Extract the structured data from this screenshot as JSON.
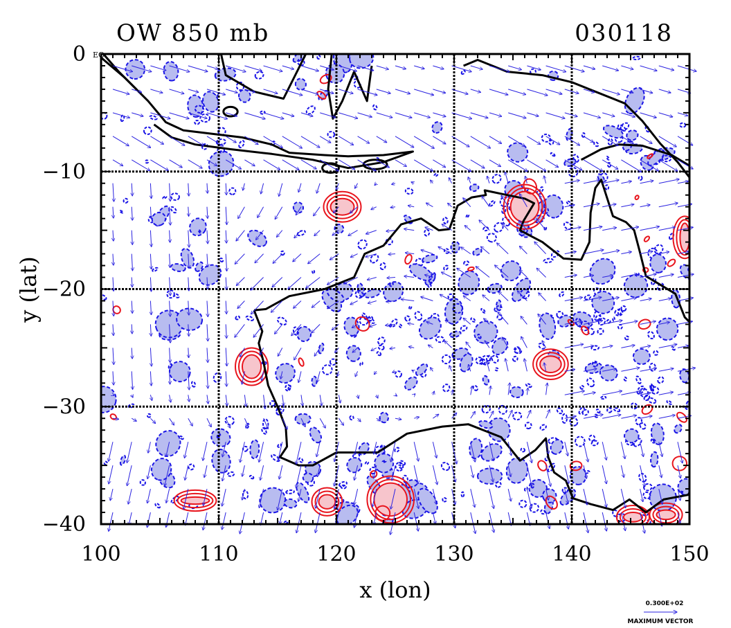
{
  "chart_data": {
    "type": "contour",
    "title_left": "OW 850 mb",
    "title_right": "030118",
    "xlabel": "x (lon)",
    "ylabel": "y (lat)",
    "xlim": [
      100,
      150
    ],
    "ylim": [
      -40,
      0
    ],
    "x_ticks": [
      100,
      110,
      120,
      130,
      140,
      150
    ],
    "y_ticks": [
      0,
      -10,
      -20,
      -30,
      -40
    ],
    "x_tick_labels": [
      "100",
      "110",
      "120",
      "130",
      "140",
      "150"
    ],
    "y_tick_labels": [
      "0",
      "−10",
      "−20",
      "−30",
      "−40"
    ],
    "y0_suffix": "EQ",
    "grid": true,
    "grid_lines": {
      "x": [
        110,
        120,
        130,
        140
      ],
      "y": [
        -10,
        -20,
        -30
      ]
    },
    "vector_key": {
      "value_label": "0.300E+02",
      "caption": "MAXIMUM VECTOR"
    },
    "colors": {
      "positive_contour": "#e8141c",
      "positive_fill": "#f7c5cc",
      "negative_contour": "#1a14e6",
      "negative_fill": "#b8bcf0",
      "coastline": "#000000",
      "vectors": "#2a22e0"
    },
    "positive_regions": [
      {
        "lon": 124.6,
        "lat": -37.9,
        "rx": 1.4,
        "ry": 1.4,
        "filled": true
      },
      {
        "lon": 136.0,
        "lat": -13.0,
        "rx": 1.2,
        "ry": 1.3,
        "filled": true
      },
      {
        "lon": 112.8,
        "lat": -26.6,
        "rx": 0.8,
        "ry": 1.0,
        "filled": true
      },
      {
        "lon": 138.2,
        "lat": -26.4,
        "rx": 0.9,
        "ry": 0.7,
        "filled": true
      },
      {
        "lon": 149.6,
        "lat": -15.6,
        "rx": 0.4,
        "ry": 1.2,
        "filled": true
      },
      {
        "lon": 119.2,
        "lat": -38.1,
        "rx": 0.7,
        "ry": 0.6,
        "filled": true
      },
      {
        "lon": 145.2,
        "lat": -39.4,
        "rx": 0.8,
        "ry": 0.4,
        "filled": true
      },
      {
        "lon": 148.0,
        "lat": -39.2,
        "rx": 0.8,
        "ry": 0.4,
        "filled": true
      },
      {
        "lon": 108.0,
        "lat": -38.0,
        "rx": 1.2,
        "ry": 0.3,
        "filled": true
      },
      {
        "lon": 120.5,
        "lat": -13.0,
        "rx": 1.0,
        "ry": 0.7,
        "filled": true
      }
    ],
    "coastlines": [
      [
        [
          100.0,
          -0.3
        ],
        [
          102.0,
          -2.0
        ],
        [
          104.0,
          -4.0
        ],
        [
          105.5,
          -5.8
        ],
        [
          107.0,
          -6.5
        ],
        [
          109.5,
          -6.8
        ],
        [
          112.0,
          -7.1
        ],
        [
          114.5,
          -7.7
        ],
        [
          116.0,
          -8.4
        ],
        [
          119.0,
          -8.6
        ],
        [
          121.0,
          -8.7
        ],
        [
          124.0,
          -8.6
        ],
        [
          126.5,
          -8.3
        ],
        [
          124.0,
          -9.2
        ],
        [
          121.0,
          -9.7
        ],
        [
          118.0,
          -9.0
        ],
        [
          114.5,
          -8.5
        ],
        [
          111.0,
          -8.1
        ],
        [
          108.0,
          -7.7
        ],
        [
          106.0,
          -7.1
        ],
        [
          104.5,
          -6.0
        ]
      ],
      [
        [
          100.2,
          0.0
        ],
        [
          101.5,
          -1.5
        ],
        [
          103.0,
          -3.0
        ]
      ],
      [
        [
          110.2,
          0.0
        ],
        [
          110.6,
          -1.8
        ],
        [
          113.0,
          -3.2
        ],
        [
          115.5,
          -3.8
        ],
        [
          116.4,
          -2.0
        ],
        [
          117.4,
          0.0
        ]
      ],
      [
        [
          119.6,
          0.0
        ],
        [
          119.3,
          -3.0
        ],
        [
          119.7,
          -5.5
        ],
        [
          120.5,
          -4.0
        ],
        [
          121.5,
          -1.5
        ],
        [
          122.6,
          -4.0
        ],
        [
          123.0,
          -1.0
        ]
      ],
      [
        [
          130.8,
          -1.0
        ],
        [
          132.0,
          -0.5
        ],
        [
          134.5,
          -1.5
        ],
        [
          137.5,
          -1.8
        ],
        [
          140.0,
          -2.4
        ],
        [
          142.0,
          -3.2
        ],
        [
          144.5,
          -4.2
        ],
        [
          146.0,
          -5.7
        ],
        [
          147.5,
          -7.6
        ],
        [
          149.0,
          -9.2
        ],
        [
          150.0,
          -10.5
        ]
      ],
      [
        [
          140.8,
          -9.0
        ],
        [
          142.5,
          -8.1
        ],
        [
          144.0,
          -7.7
        ],
        [
          146.0,
          -7.8
        ],
        [
          148.5,
          -8.6
        ],
        [
          150.0,
          -9.5
        ]
      ],
      [
        [
          113.0,
          -21.8
        ],
        [
          114.0,
          -21.7
        ],
        [
          116.0,
          -20.6
        ],
        [
          119.0,
          -20.0
        ],
        [
          121.5,
          -19.0
        ],
        [
          122.4,
          -17.0
        ],
        [
          124.0,
          -16.3
        ],
        [
          125.5,
          -14.5
        ],
        [
          127.2,
          -14.0
        ],
        [
          128.7,
          -15.0
        ],
        [
          129.6,
          -14.9
        ],
        [
          130.3,
          -12.9
        ],
        [
          131.5,
          -12.2
        ],
        [
          132.7,
          -12.0
        ],
        [
          132.6,
          -11.6
        ],
        [
          134.5,
          -12.0
        ],
        [
          136.0,
          -12.3
        ],
        [
          136.8,
          -12.7
        ],
        [
          135.9,
          -14.2
        ],
        [
          135.6,
          -15.0
        ],
        [
          137.5,
          -16.0
        ],
        [
          139.3,
          -17.4
        ],
        [
          140.8,
          -17.5
        ],
        [
          141.5,
          -16.0
        ],
        [
          141.6,
          -13.5
        ],
        [
          142.0,
          -11.4
        ],
        [
          142.5,
          -10.7
        ],
        [
          143.5,
          -13.8
        ],
        [
          144.6,
          -14.3
        ],
        [
          145.3,
          -15.0
        ],
        [
          145.8,
          -16.9
        ],
        [
          146.3,
          -18.9
        ],
        [
          148.8,
          -20.4
        ],
        [
          149.6,
          -22.4
        ],
        [
          150.0,
          -22.8
        ]
      ],
      [
        [
          113.0,
          -21.8
        ],
        [
          113.7,
          -23.6
        ],
        [
          113.4,
          -24.6
        ],
        [
          113.8,
          -26.2
        ],
        [
          114.2,
          -28.2
        ],
        [
          115.0,
          -30.0
        ],
        [
          115.7,
          -31.8
        ],
        [
          115.8,
          -33.4
        ],
        [
          115.2,
          -34.3
        ],
        [
          116.8,
          -35.0
        ],
        [
          118.0,
          -35.0
        ],
        [
          120.0,
          -33.9
        ],
        [
          123.5,
          -33.9
        ],
        [
          126.0,
          -32.3
        ],
        [
          129.0,
          -31.7
        ],
        [
          131.2,
          -31.5
        ],
        [
          134.0,
          -32.6
        ],
        [
          135.6,
          -34.6
        ],
        [
          136.9,
          -33.7
        ],
        [
          137.8,
          -32.7
        ],
        [
          138.0,
          -34.3
        ],
        [
          138.5,
          -35.6
        ],
        [
          139.5,
          -36.3
        ],
        [
          140.1,
          -37.8
        ],
        [
          141.6,
          -38.3
        ],
        [
          143.5,
          -38.8
        ],
        [
          144.9,
          -37.9
        ],
        [
          146.3,
          -39.0
        ],
        [
          147.8,
          -37.9
        ],
        [
          149.9,
          -37.5
        ],
        [
          150.0,
          -37.3
        ]
      ]
    ],
    "lakes": [
      {
        "lon": 111.0,
        "lat": -4.9,
        "rx": 0.6,
        "ry": 0.4
      },
      {
        "lon": 119.5,
        "lat": -9.7,
        "rx": 0.7,
        "ry": 0.4
      },
      {
        "lon": 123.3,
        "lat": -9.4,
        "rx": 1.0,
        "ry": 0.4
      }
    ]
  }
}
